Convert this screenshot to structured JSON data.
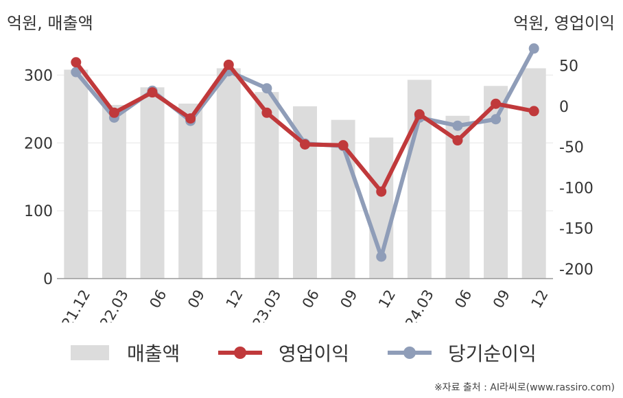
{
  "units": {
    "left": "억원, 매출액",
    "right": "억원, 영업이익"
  },
  "source": "※자료 출처 : AI라씨로(www.rassiro.com)",
  "colors": {
    "bar": "#dcdcdc",
    "operating_profit": "#c0393b",
    "net_profit": "#8f9db8",
    "axis": "#999999",
    "grid": "#e6e6e6",
    "text": "#333333"
  },
  "chart_data": {
    "type": "bar",
    "title": "",
    "categories": [
      "21.12",
      "22.03",
      "06",
      "09",
      "12",
      "23.03",
      "06",
      "09",
      "12",
      "24.03",
      "06",
      "09",
      "12"
    ],
    "left_axis": {
      "ylim": [
        0,
        350
      ],
      "ticks": [
        0,
        100,
        200,
        300
      ],
      "tick_labels": [
        "0",
        "100",
        "200",
        "300"
      ]
    },
    "right_axis": {
      "ylim": [
        -212,
        80
      ],
      "ticks": [
        50,
        0,
        -50,
        -100,
        -150,
        -200
      ],
      "tick_labels": [
        "50",
        "0",
        "-50",
        "-100",
        "-150",
        "-200"
      ]
    },
    "grid": true,
    "legend_position": "bottom",
    "series": [
      {
        "name": "매출액",
        "type": "bar",
        "axis": "left",
        "values": [
          308,
          256,
          282,
          258,
          310,
          275,
          254,
          234,
          208,
          293,
          240,
          284,
          310
        ]
      },
      {
        "name": "영업이익",
        "type": "line",
        "axis": "right",
        "values": [
          54,
          -8,
          17,
          -15,
          51,
          -8,
          -47,
          -48,
          -105,
          -10,
          -42,
          3,
          -6
        ]
      },
      {
        "name": "당기순이익",
        "type": "line",
        "axis": "right",
        "values": [
          42,
          -14,
          19,
          -18,
          43,
          22,
          -46,
          -49,
          -185,
          -14,
          -24,
          -16,
          71
        ]
      }
    ]
  }
}
